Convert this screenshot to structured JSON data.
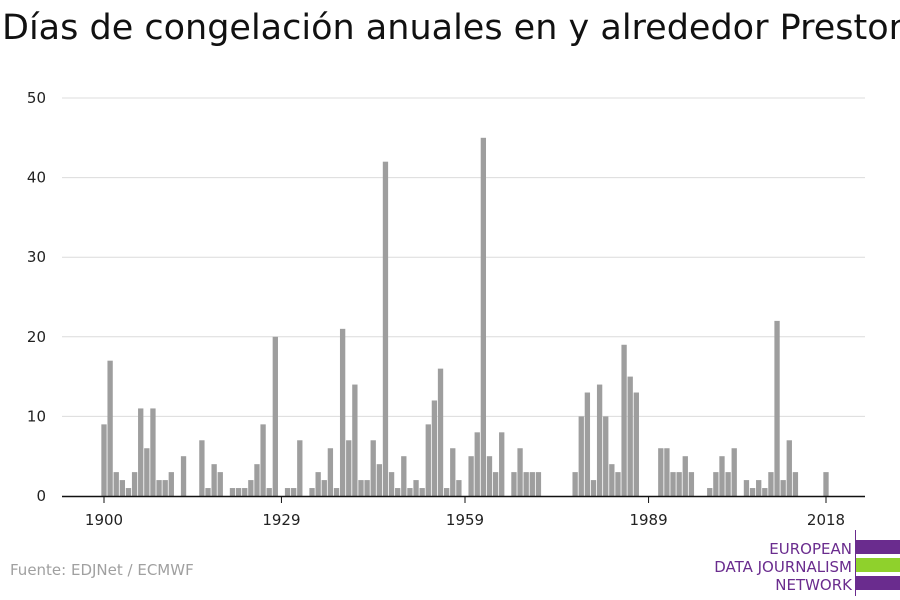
{
  "title": "Días de congelación anuales en y alrededor Preston",
  "source": "Fuente: EDJNet / ECMWF",
  "logo": {
    "lines": [
      "EUROPEAN",
      "DATA JOURNALISM",
      "NETWORK"
    ],
    "colors": {
      "purple": "#6a2c8e",
      "green": "#8fd12c"
    }
  },
  "chart_data": {
    "type": "bar",
    "title": "Días de congelación anuales en y alrededor Preston",
    "xlabel": "",
    "ylabel": "",
    "ylim": [
      0,
      50
    ],
    "yticks": [
      0,
      10,
      20,
      30,
      40,
      50
    ],
    "xticks": [
      1900,
      1929,
      1959,
      1989,
      2018
    ],
    "x_start": 1900,
    "x_end": 2018,
    "bar_color": "#9e9e9e",
    "grid": true,
    "values": [
      9,
      17,
      3,
      2,
      1,
      3,
      11,
      6,
      11,
      2,
      2,
      3,
      0,
      5,
      0,
      0,
      7,
      1,
      4,
      3,
      0,
      1,
      1,
      1,
      2,
      4,
      9,
      1,
      20,
      0,
      1,
      1,
      7,
      0,
      1,
      3,
      2,
      6,
      1,
      21,
      7,
      14,
      2,
      2,
      7,
      4,
      42,
      3,
      1,
      5,
      1,
      2,
      1,
      9,
      12,
      16,
      1,
      6,
      2,
      0,
      5,
      8,
      45,
      5,
      3,
      8,
      0,
      3,
      6,
      3,
      3,
      3,
      0,
      0,
      0,
      0,
      0,
      3,
      10,
      13,
      2,
      14,
      10,
      4,
      3,
      19,
      15,
      13,
      0,
      0,
      0,
      6,
      6,
      3,
      3,
      5,
      3,
      0,
      0,
      1,
      3,
      5,
      3,
      6,
      0,
      2,
      1,
      2,
      1,
      3,
      22,
      2,
      7,
      3,
      0,
      0,
      0,
      0,
      3
    ]
  }
}
